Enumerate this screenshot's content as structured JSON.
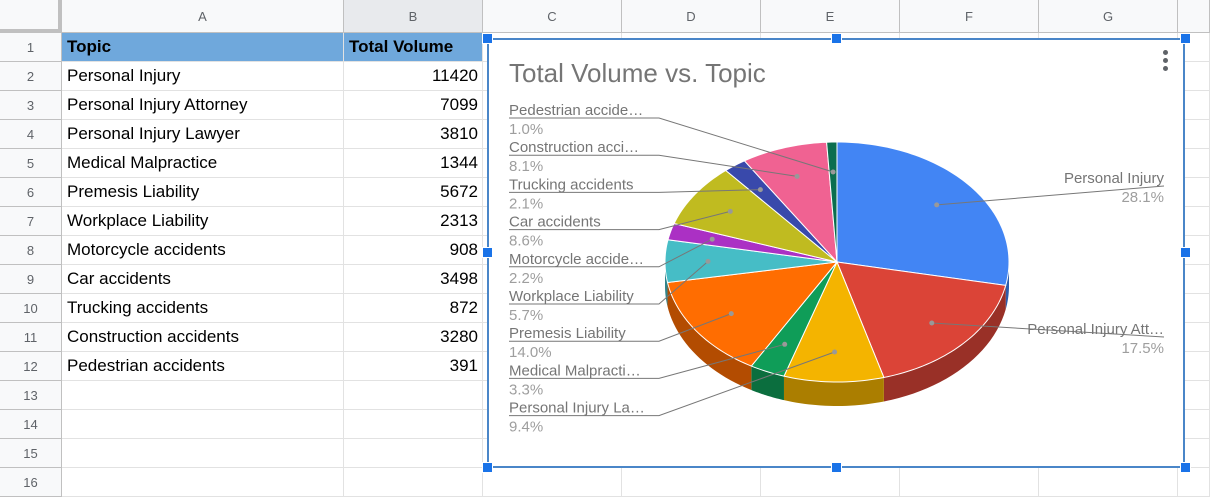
{
  "columns": [
    "A",
    "B",
    "C",
    "D",
    "E",
    "F",
    "G"
  ],
  "rows": [
    "1",
    "2",
    "3",
    "4",
    "5",
    "6",
    "7",
    "8",
    "9",
    "10",
    "11",
    "12",
    "13",
    "14",
    "15",
    "16"
  ],
  "table": {
    "header": {
      "topic": "Topic",
      "volume": "Total Volume"
    },
    "data": [
      {
        "topic": "Personal Injury",
        "volume": "11420"
      },
      {
        "topic": "Personal Injury Attorney",
        "volume": "7099"
      },
      {
        "topic": "Personal Injury Lawyer",
        "volume": "3810"
      },
      {
        "topic": "Medical Malpractice",
        "volume": "1344"
      },
      {
        "topic": "Premesis Liability",
        "volume": "5672"
      },
      {
        "topic": "Workplace Liability",
        "volume": "2313"
      },
      {
        "topic": "Motorcycle accidents",
        "volume": "908"
      },
      {
        "topic": "Car accidents",
        "volume": "3498"
      },
      {
        "topic": "Trucking accidents",
        "volume": "872"
      },
      {
        "topic": "Construction accidents",
        "volume": "3280"
      },
      {
        "topic": "Pedestrian accidents",
        "volume": "391"
      }
    ]
  },
  "chart_data": {
    "type": "pie",
    "title": "Total Volume vs. Topic",
    "three_d": true,
    "slices": [
      {
        "label": "Personal Injury",
        "value": 11420,
        "percent": "28.1%",
        "color": "#4285f4"
      },
      {
        "label": "Personal Injury Att…",
        "value": 7099,
        "percent": "17.5%",
        "color": "#db4437"
      },
      {
        "label": "Personal Injury La…",
        "value": 3810,
        "percent": "9.4%",
        "color": "#f4b400"
      },
      {
        "label": "Medical Malpracti…",
        "value": 1344,
        "percent": "3.3%",
        "color": "#0f9d58"
      },
      {
        "label": "Premesis Liability",
        "value": 5672,
        "percent": "14.0%",
        "color": "#ff6d01"
      },
      {
        "label": "Workplace Liability",
        "value": 2313,
        "percent": "5.7%",
        "color": "#46bdc6"
      },
      {
        "label": "Motorcycle accide…",
        "value": 908,
        "percent": "2.2%",
        "color": "#ab30c4"
      },
      {
        "label": "Car accidents",
        "value": 3498,
        "percent": "8.6%",
        "color": "#c0bb20"
      },
      {
        "label": "Trucking accidents",
        "value": 872,
        "percent": "2.1%",
        "color": "#3949ab"
      },
      {
        "label": "Construction acci…",
        "value": 3280,
        "percent": "8.1%",
        "color": "#f06292"
      },
      {
        "label": "Pedestrian accide…",
        "value": 391,
        "percent": "1.0%",
        "color": "#0b6e4f"
      }
    ]
  }
}
